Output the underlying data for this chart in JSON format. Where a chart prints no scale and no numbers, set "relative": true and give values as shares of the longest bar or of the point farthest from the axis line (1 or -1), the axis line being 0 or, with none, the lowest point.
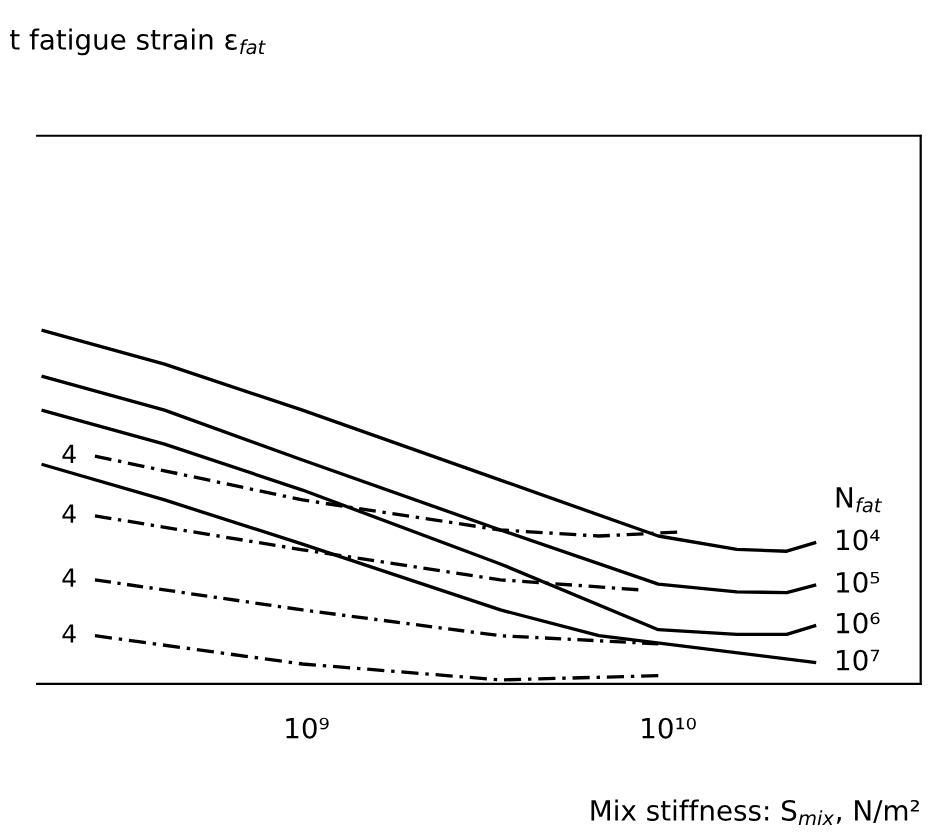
{
  "chart_data": {
    "type": "line",
    "relative": true,
    "log": "x",
    "xlabel": "Mix stiffness: S$_{mix}$, N/m²",
    "legend_title": "N$_{fat}$",
    "xlim": [
      180000000.0,
      50000000000.0
    ],
    "xticks": [
      {
        "value": 1000000000.0,
        "label": "10⁹"
      },
      {
        "value": 10000000000.0,
        "label": "10¹⁰"
      }
    ],
    "tick_labels": "x",
    "grid": false,
    "legend": false,
    "series": [
      {
        "name": "10⁴",
        "color": "#000000",
        "line_style": "solid",
        "x": [
          185000000.0,
          405000000.0,
          975000000.0,
          3440000000.0,
          9400000000.0,
          15500000000.0,
          21300000000.0,
          25700000000.0
        ],
        "values": [
          1.0,
          0.904,
          0.774,
          0.576,
          0.418,
          0.38,
          0.375,
          0.4
        ]
      },
      {
        "name": "10⁵",
        "color": "#000000",
        "line_style": "solid",
        "x": [
          185000000.0,
          405000000.0,
          975000000.0,
          3440000000.0,
          9400000000.0,
          15500000000.0,
          21300000000.0,
          25700000000.0
        ],
        "values": [
          0.87,
          0.774,
          0.633,
          0.435,
          0.282,
          0.26,
          0.258,
          0.28
        ]
      },
      {
        "name": "10⁶",
        "color": "#000000",
        "line_style": "solid",
        "x": [
          185000000.0,
          405000000.0,
          975000000.0,
          3440000000.0,
          9400000000.0,
          15500000000.0,
          21300000000.0,
          25700000000.0
        ],
        "values": [
          0.774,
          0.678,
          0.548,
          0.339,
          0.153,
          0.14,
          0.14,
          0.165
        ]
      },
      {
        "name": "10⁷",
        "color": "#000000",
        "line_style": "solid",
        "x": [
          185000000.0,
          405000000.0,
          975000000.0,
          3440000000.0,
          6440000000.0,
          25700000000.0
        ],
        "values": [
          0.621,
          0.52,
          0.395,
          0.209,
          0.136,
          0.06
        ]
      },
      {
        "color": "#000000",
        "line_style": "dashed",
        "x": [
          260000000.0,
          975000000.0,
          3440000000.0,
          6440000000.0,
          10600000000.0
        ],
        "values": [
          0.644,
          0.52,
          0.435,
          0.418,
          0.429
        ]
      },
      {
        "color": "#000000",
        "line_style": "dashed",
        "x": [
          260000000.0,
          975000000.0,
          3440000000.0,
          8280000000.0
        ],
        "values": [
          0.475,
          0.379,
          0.294,
          0.266
        ]
      },
      {
        "color": "#000000",
        "line_style": "dashed",
        "x": [
          260000000.0,
          975000000.0,
          3440000000.0,
          9400000000.0
        ],
        "values": [
          0.294,
          0.209,
          0.136,
          0.113
        ]
      },
      {
        "color": "#000000",
        "line_style": "dashed",
        "x": [
          260000000.0,
          975000000.0,
          3440000000.0,
          9400000000.0
        ],
        "values": [
          0.136,
          0.056,
          0.011,
          0.023
        ]
      }
    ],
    "annotations": [
      "t fatigue strain ε$_{fat}$",
      "4",
      "4",
      "4",
      "4"
    ]
  }
}
